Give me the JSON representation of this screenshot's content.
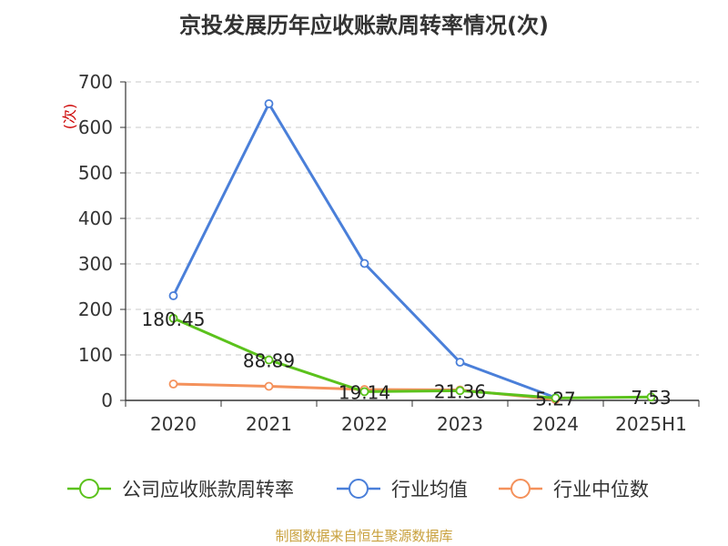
{
  "chart_data": {
    "type": "line",
    "title": "京投发展历年应收账款周转率情况(次)",
    "ylabel": "(次)",
    "xlabel": "",
    "categories": [
      "2020",
      "2021",
      "2022",
      "2023",
      "2024",
      "2025H1"
    ],
    "yticks": [
      "0",
      "100",
      "200",
      "300",
      "400",
      "500",
      "600",
      "700"
    ],
    "ylim": [
      0,
      700
    ],
    "grid": true,
    "legend_position": "bottom",
    "series": [
      {
        "name": "公司应收账款周转率",
        "color": "#5bc21c",
        "values": [
          180.45,
          88.89,
          19.14,
          21.36,
          5.27,
          7.53
        ],
        "labels": [
          "180.45",
          "88.89",
          "19.14",
          "21.36",
          "5.27",
          "7.53"
        ]
      },
      {
        "name": "行业均值",
        "color": "#4a7fd9",
        "values": [
          230,
          652,
          301,
          84,
          6,
          null
        ],
        "labels": null
      },
      {
        "name": "行业中位数",
        "color": "#f4915b",
        "values": [
          36,
          31,
          24,
          23,
          2,
          null
        ],
        "labels": null
      }
    ]
  },
  "source": {
    "text": "制图数据来自恒生聚源数据库",
    "color": "#c8a03c"
  }
}
